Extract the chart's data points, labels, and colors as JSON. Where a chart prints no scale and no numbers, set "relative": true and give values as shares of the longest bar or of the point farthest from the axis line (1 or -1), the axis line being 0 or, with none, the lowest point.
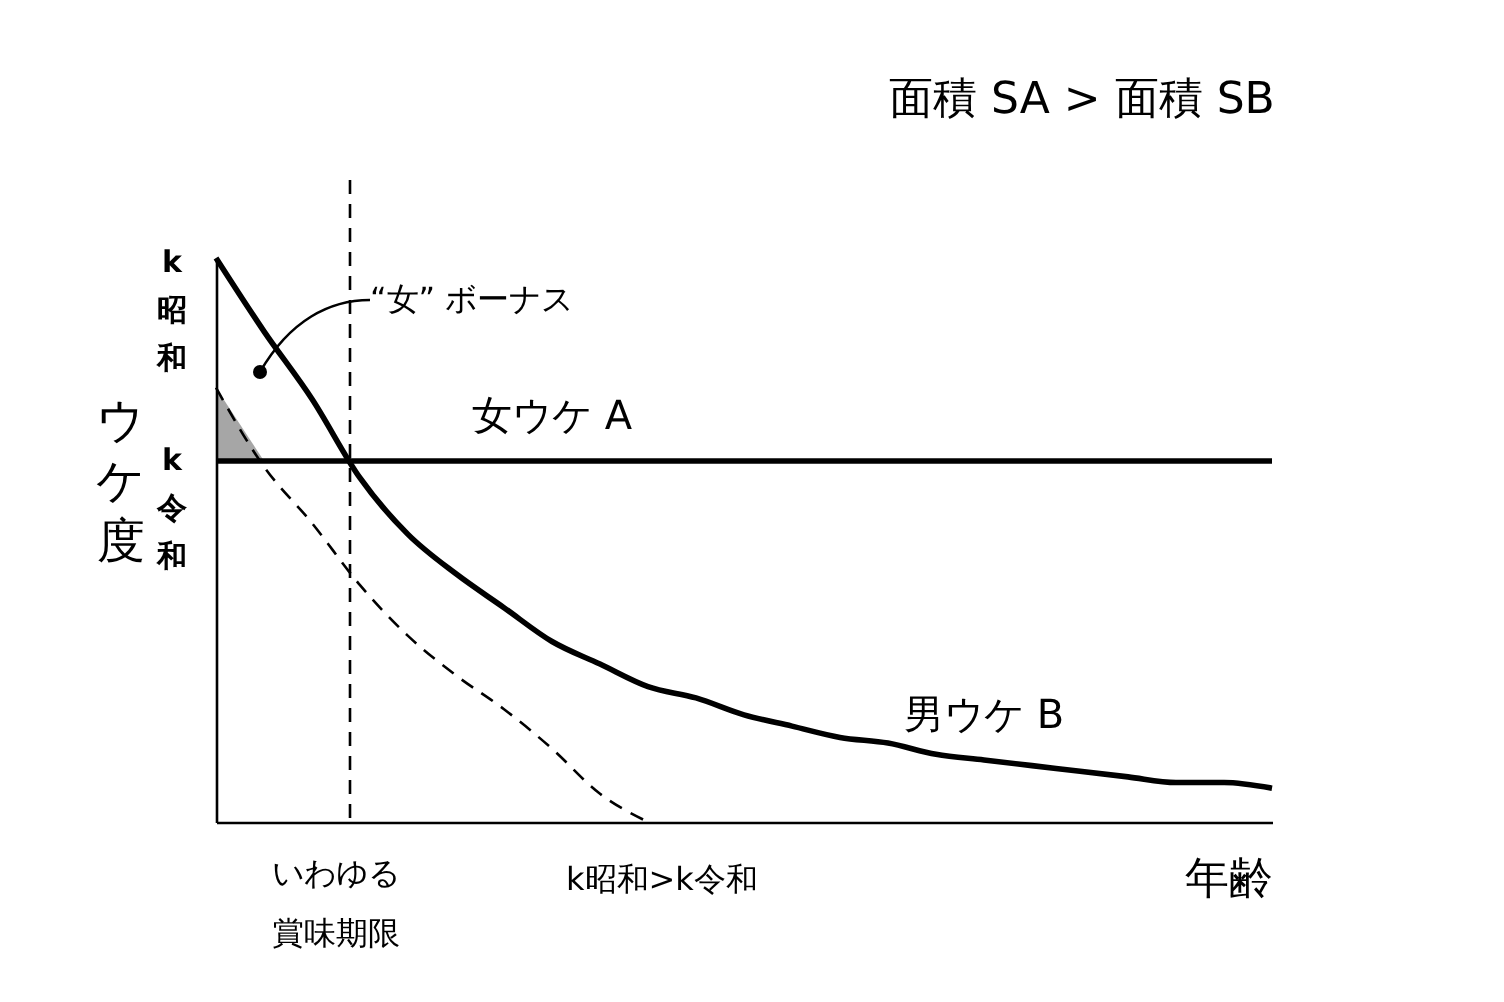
{
  "chart_data": {
    "type": "line",
    "relative": true,
    "title": "面積 SA > 面積 SB",
    "ylabel": "ウケ度",
    "xlabel": "年齢",
    "categories": [
      null,
      null,
      null,
      null,
      null,
      null,
      null,
      null,
      null,
      null,
      null,
      null,
      null,
      null,
      null,
      null,
      null,
      null,
      null,
      null,
      null,
      null,
      null
    ],
    "series": [
      {
        "name": "女ウケ A",
        "color": "#000000",
        "values": [
          0.64,
          0.64,
          0.64,
          0.64,
          0.64,
          0.64,
          0.64,
          0.64,
          0.64,
          0.64,
          0.64,
          0.64,
          0.64,
          0.64,
          0.64,
          0.64,
          0.64,
          0.64,
          0.64,
          0.64,
          0.64,
          0.64,
          0.64
        ]
      },
      {
        "name": "男ウケ B",
        "color": "#000000",
        "values": [
          1,
          0.87,
          0.75,
          0.61,
          0.51,
          0.44,
          0.38,
          0.32,
          0.28,
          0.24,
          0.22,
          0.19,
          0.17,
          0.15,
          0.14,
          0.12,
          0.11,
          0.1,
          0.09,
          0.08,
          0.07,
          0.07,
          0.06
        ]
      },
      {
        "color": "#000000",
        "line_style": "dashed",
        "values": [
          0.77,
          0.63,
          0.53,
          0.42,
          0.33,
          0.26,
          0.2,
          0.13,
          0.05,
          0,
          null,
          null,
          null,
          null,
          null,
          null,
          null,
          null,
          null,
          null,
          null,
          null,
          null
        ],
        "upper": [
          0.77,
          0.64,
          null,
          null,
          null,
          null,
          null,
          null,
          null,
          null,
          null,
          null,
          null,
          null,
          null,
          null,
          null,
          null,
          null,
          null,
          null,
          null,
          null
        ],
        "lower": [
          0.64,
          0.64,
          null,
          null,
          null,
          null,
          null,
          null,
          null,
          null,
          null,
          null,
          null,
          null,
          null,
          null,
          null,
          null,
          null,
          null,
          null,
          null,
          null
        ]
      }
    ],
    "annotations": [
      "k昭和",
      "k令和",
      "“女” ボーナス",
      "k昭和>k令和",
      "いわゆる賞味期限"
    ]
  }
}
